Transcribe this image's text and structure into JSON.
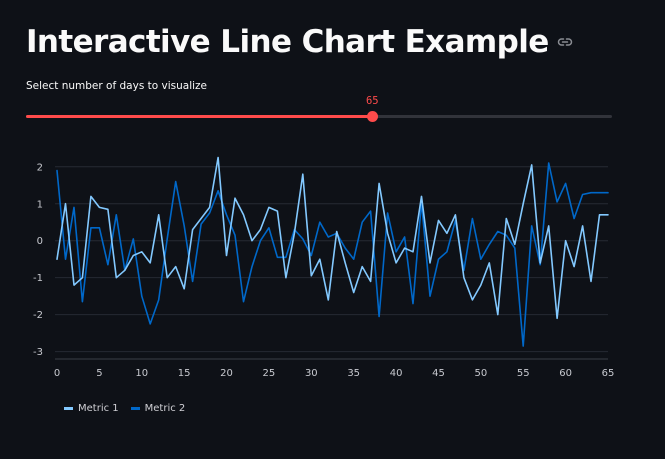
{
  "header": {
    "title": "Interactive Line Chart Example",
    "link_icon": "link-icon"
  },
  "slider": {
    "label": "Select number of days to visualize",
    "value": 65,
    "value_label": "65",
    "min": 0,
    "max": 110,
    "accent": "#ff4b4b",
    "track": "#31333a"
  },
  "chart_data": {
    "type": "line",
    "x": [
      0,
      1,
      2,
      3,
      4,
      5,
      6,
      7,
      8,
      9,
      10,
      11,
      12,
      13,
      14,
      15,
      16,
      17,
      18,
      19,
      20,
      21,
      22,
      23,
      24,
      25,
      26,
      27,
      28,
      29,
      30,
      31,
      32,
      33,
      34,
      35,
      36,
      37,
      38,
      39,
      40,
      41,
      42,
      43,
      44,
      45,
      46,
      47,
      48,
      49,
      50,
      51,
      52,
      53,
      54,
      55,
      56,
      57,
      58,
      59,
      60,
      61,
      62,
      63,
      64,
      65
    ],
    "series": [
      {
        "name": "Metric 1",
        "color": "#83c9ff",
        "values": [
          -0.5,
          1.0,
          -1.2,
          -1.0,
          1.2,
          0.9,
          0.85,
          -1.0,
          -0.8,
          -0.4,
          -0.3,
          -0.6,
          0.7,
          -1.0,
          -0.7,
          -1.3,
          0.3,
          0.6,
          0.9,
          2.25,
          -0.4,
          1.15,
          0.7,
          0.0,
          0.3,
          0.9,
          0.8,
          -1.0,
          0.2,
          1.8,
          -0.95,
          -0.5,
          -1.6,
          0.25,
          -0.6,
          -1.4,
          -0.7,
          -1.1,
          1.55,
          0.2,
          -0.6,
          -0.2,
          -0.3,
          1.2,
          -0.6,
          0.55,
          0.2,
          0.7,
          -1.0,
          -1.6,
          -1.2,
          -0.6,
          -2.0,
          0.6,
          -0.1,
          1.0,
          2.05,
          -0.6,
          0.4,
          -2.1,
          0.0,
          -0.7,
          0.4,
          -1.1,
          0.7,
          0.7
        ]
      },
      {
        "name": "Metric 2",
        "color": "#0068c9",
        "values": [
          1.9,
          -0.5,
          0.9,
          -1.65,
          0.35,
          0.35,
          -0.65,
          0.7,
          -0.8,
          0.05,
          -1.5,
          -2.25,
          -1.6,
          0.05,
          1.6,
          0.4,
          -1.1,
          0.45,
          0.75,
          1.35,
          0.7,
          0.15,
          -1.65,
          -0.7,
          0.0,
          0.35,
          -0.45,
          -0.45,
          0.3,
          0.05,
          -0.4,
          0.5,
          0.1,
          0.2,
          -0.2,
          -0.5,
          0.5,
          0.8,
          -2.05,
          0.75,
          -0.3,
          0.1,
          -1.7,
          1.05,
          -1.5,
          -0.5,
          -0.3,
          0.55,
          -0.8,
          0.6,
          -0.5,
          -0.1,
          0.25,
          0.15,
          -0.2,
          -2.85,
          0.4,
          -0.65,
          2.1,
          1.05,
          1.55,
          0.6,
          1.25,
          1.3,
          1.3,
          1.3
        ]
      }
    ],
    "xticks": [
      0,
      5,
      10,
      15,
      20,
      25,
      30,
      35,
      40,
      45,
      50,
      55,
      60,
      65
    ],
    "yticks": [
      2,
      1,
      0,
      -1,
      -2,
      -3
    ],
    "xlim": [
      0,
      65
    ],
    "ylim": [
      -3.2,
      2.4
    ],
    "grid": true,
    "legend_position": "bottom-left",
    "title": "",
    "xlabel": "",
    "ylabel": ""
  }
}
